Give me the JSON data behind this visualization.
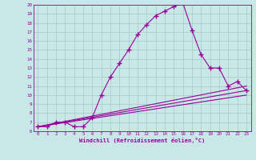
{
  "xlabel": "Windchill (Refroidissement éolien,°C)",
  "bg_color": "#c8e8e8",
  "grid_color": "#a8c8c8",
  "line_color": "#990099",
  "xlim": [
    -0.5,
    23.5
  ],
  "ylim": [
    6,
    20
  ],
  "xticks": [
    0,
    1,
    2,
    3,
    4,
    5,
    6,
    7,
    8,
    9,
    10,
    11,
    12,
    13,
    14,
    15,
    16,
    17,
    18,
    19,
    20,
    21,
    22,
    23
  ],
  "yticks": [
    6,
    7,
    8,
    9,
    10,
    11,
    12,
    13,
    14,
    15,
    16,
    17,
    18,
    19,
    20
  ],
  "series1_x": [
    0,
    1,
    2,
    3,
    4,
    5,
    6,
    7,
    8,
    9,
    10,
    11,
    12,
    13,
    14,
    15,
    16,
    17,
    18,
    19,
    20,
    21,
    22,
    23
  ],
  "series1_y": [
    6.5,
    6.5,
    7.0,
    7.0,
    6.5,
    6.5,
    7.5,
    10.0,
    12.0,
    13.5,
    15.0,
    16.7,
    17.8,
    18.8,
    19.3,
    19.8,
    20.2,
    17.2,
    14.5,
    13.0,
    13.0,
    11.0,
    11.5,
    10.5
  ],
  "line1_x": [
    0,
    23
  ],
  "line1_y": [
    6.5,
    11.0
  ],
  "line2_x": [
    0,
    23
  ],
  "line2_y": [
    6.5,
    10.5
  ],
  "line3_x": [
    0,
    23
  ],
  "line3_y": [
    6.5,
    10.0
  ]
}
